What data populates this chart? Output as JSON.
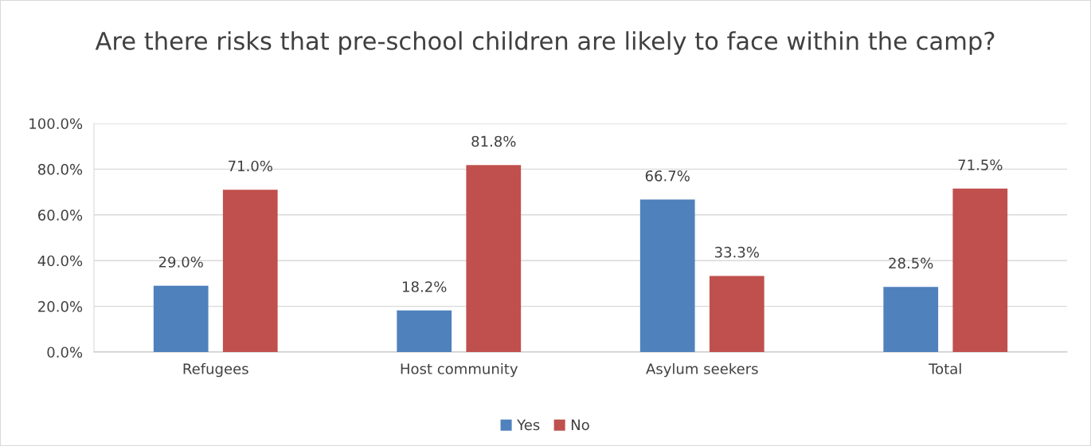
{
  "chart_data": {
    "type": "bar",
    "title": "Are there risks that pre-school children are likely to face within the camp?",
    "categories": [
      "Refugees",
      "Host community",
      "Asylum seekers",
      "Total"
    ],
    "series": [
      {
        "name": "Yes",
        "color": "#4f81bd",
        "values": [
          29.0,
          18.2,
          66.7,
          28.5
        ],
        "value_labels": [
          "29.0%",
          "18.2%",
          "66.7%",
          "28.5%"
        ]
      },
      {
        "name": "No",
        "color": "#c0504d",
        "values": [
          71.0,
          81.8,
          33.3,
          71.5
        ],
        "value_labels": [
          "71.0%",
          "81.8%",
          "33.3%",
          "71.5%"
        ]
      }
    ],
    "ylim": [
      0,
      100
    ],
    "yticks": [
      {
        "value": 0,
        "label": "0.0%"
      },
      {
        "value": 20,
        "label": "20.0%"
      },
      {
        "value": 40,
        "label": "40.0%"
      },
      {
        "value": 60,
        "label": "60.0%"
      },
      {
        "value": 80,
        "label": "80.0%"
      },
      {
        "value": 100,
        "label": "100.0%"
      }
    ],
    "grid": "y",
    "legend": "bottom"
  }
}
